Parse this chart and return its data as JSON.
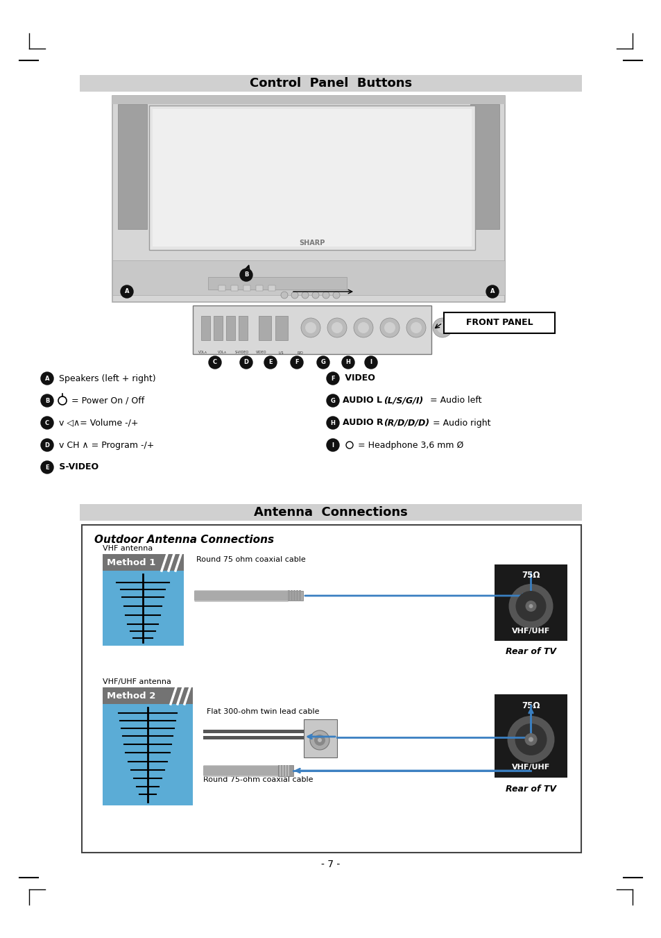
{
  "title1": "Control  Panel  Buttons",
  "title2": "Antenna  Connections",
  "front_panel_label": "FRONT PANEL",
  "outdoor_title": "Outdoor Antenna Connections",
  "method1_label": "Method 1",
  "method2_label": "Method 2",
  "vhf_antenna_label": "VHF antenna",
  "vhfuhf_antenna_label": "VHF/UHF antenna",
  "round75_label": "Round 75 ohm coaxial cable",
  "flat300_label": "Flat 300-ohm twin lead cable",
  "round75b_label": "Round 75-ohm coaxial cable",
  "rear_tv": "Rear of TV",
  "vhfuhf_connector": "VHF/UHF",
  "ohm75": "75Ω",
  "page_num": "- 7 -",
  "bg_color": "#ffffff",
  "header_bg": "#d0d0d0",
  "blue_color": "#3a7fc1",
  "method_bg": "#737373",
  "method_box_blue": "#5bacd6"
}
